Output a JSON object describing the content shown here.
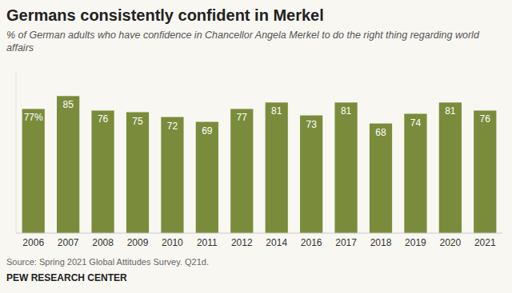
{
  "chart_data": {
    "type": "bar",
    "title": "Germans consistently confident in Merkel",
    "subtitle": "% of German adults who have confidence in Chancellor Angela Merkel to do the right thing regarding world affairs",
    "categories": [
      "2006",
      "2007",
      "2008",
      "2009",
      "2010",
      "2011",
      "2012",
      "2014",
      "2016",
      "2017",
      "2018",
      "2019",
      "2020",
      "2021"
    ],
    "values": [
      77,
      85,
      76,
      75,
      72,
      69,
      77,
      81,
      73,
      81,
      68,
      74,
      81,
      76
    ],
    "value_labels": [
      "77%",
      "85",
      "76",
      "75",
      "72",
      "69",
      "77",
      "81",
      "73",
      "81",
      "68",
      "74",
      "81",
      "76"
    ],
    "data_labels": true,
    "color": "#7a8c3b",
    "ylim": [
      0,
      100
    ],
    "grid": false,
    "tick_labels": "x",
    "annotations": [
      "Source: Spring 2021 Global Attitudes Survey. Q21d.",
      "PEW RESEARCH CENTER"
    ]
  }
}
